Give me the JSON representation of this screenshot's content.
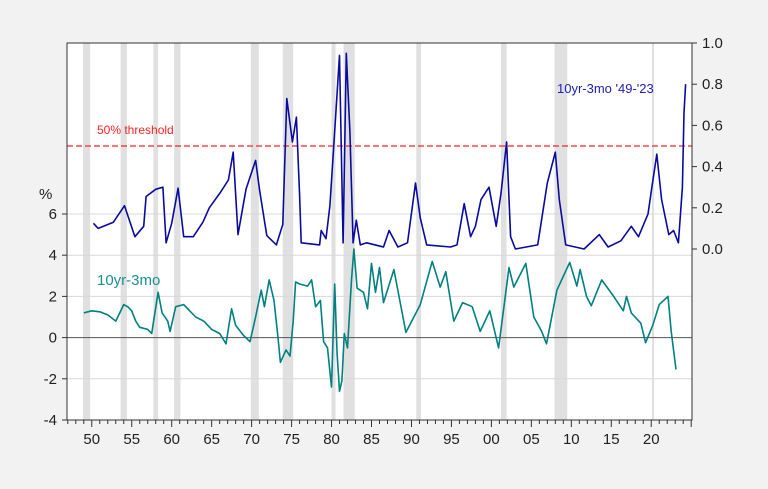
{
  "chart_data": {
    "type": "line",
    "title": "",
    "left_axis": {
      "unit_label": "%",
      "range": [
        -4,
        14.3
      ],
      "ticks": [
        6,
        4,
        2,
        0,
        -2,
        -4
      ],
      "tick_labels": [
        "6",
        "4",
        "2",
        "0",
        "-2",
        "-4"
      ],
      "gridlines": [
        6,
        4,
        2,
        -2
      ]
    },
    "right_axis": {
      "range": [
        -0.83,
        1.0
      ],
      "ticks": [
        0.0,
        0.2,
        0.4,
        0.6,
        0.8,
        1.0
      ],
      "tick_labels": [
        "0.0",
        "0.2",
        "0.4",
        "0.6",
        "0.8",
        "1.0"
      ]
    },
    "x_axis": {
      "range": [
        1946.9,
        2025.1
      ],
      "ticks": [
        1950,
        1955,
        1960,
        1965,
        1970,
        1975,
        1980,
        1985,
        1990,
        1995,
        2000,
        2005,
        2010,
        2015,
        2020
      ],
      "tick_labels": [
        "50",
        "55",
        "60",
        "65",
        "70",
        "75",
        "80",
        "85",
        "90",
        "95",
        "00",
        "05",
        "10",
        "15",
        "20"
      ]
    },
    "threshold": {
      "value": 0.5,
      "label": "50% threshold",
      "color": "#ff2020"
    },
    "recessions": [
      [
        1948.9,
        1949.8
      ],
      [
        1953.6,
        1954.4
      ],
      [
        1957.7,
        1958.3
      ],
      [
        1960.3,
        1961.1
      ],
      [
        1969.9,
        1970.9
      ],
      [
        1973.9,
        1975.2
      ],
      [
        1980.0,
        1980.5
      ],
      [
        1981.5,
        1982.9
      ],
      [
        1990.6,
        1991.2
      ],
      [
        2001.2,
        2001.9
      ],
      [
        2007.9,
        2009.5
      ],
      [
        2020.1,
        2020.3
      ]
    ],
    "series": [
      {
        "name": "10yr-3mo '49-'23",
        "axis": "right",
        "color": "#0a0aa0",
        "x": [
          1950.2,
          1950.8,
          1952.7,
          1954.1,
          1955.4,
          1956.5,
          1956.8,
          1958.0,
          1958.9,
          1959.3,
          1960.0,
          1960.8,
          1961.5,
          1962.7,
          1963.9,
          1964.7,
          1966.0,
          1967.1,
          1967.7,
          1968.3,
          1969.3,
          1970.5,
          1971.0,
          1971.9,
          1973.1,
          1973.9,
          1974.4,
          1975.1,
          1975.6,
          1976.0,
          1976.2,
          1978.5,
          1978.7,
          1979.3,
          1979.8,
          1980.2,
          1981.0,
          1981.45,
          1981.85,
          1982.3,
          1982.7,
          1983.1,
          1983.6,
          1984.4,
          1986.5,
          1987.2,
          1988.3,
          1989.5,
          1990.5,
          1991.1,
          1991.9,
          1994.9,
          1995.7,
          1996.6,
          1997.4,
          1998.0,
          1998.7,
          1999.7,
          2000.6,
          2001.2,
          2001.9,
          2002.4,
          2003.0,
          2005.8,
          2007.0,
          2008.0,
          2008.5,
          2009.3,
          2011.6,
          2013.5,
          2014.6,
          2016.2,
          2017.5,
          2018.4,
          2019.6,
          2020.2,
          2020.7,
          2021.3,
          2022.2,
          2022.8,
          2023.4,
          2023.9,
          2024.1,
          2024.3
        ],
        "values": [
          0.125,
          0.1,
          0.13,
          0.21,
          0.06,
          0.11,
          0.255,
          0.29,
          0.3,
          0.03,
          0.125,
          0.295,
          0.06,
          0.06,
          0.13,
          0.2,
          0.27,
          0.335,
          0.47,
          0.07,
          0.29,
          0.43,
          0.285,
          0.065,
          0.02,
          0.12,
          0.73,
          0.52,
          0.64,
          0.26,
          0.03,
          0.02,
          0.09,
          0.05,
          0.21,
          0.45,
          0.94,
          0.03,
          0.95,
          0.57,
          0.03,
          0.14,
          0.02,
          0.03,
          0.01,
          0.09,
          0.01,
          0.03,
          0.32,
          0.15,
          0.02,
          0.01,
          0.02,
          0.22,
          0.06,
          0.11,
          0.24,
          0.3,
          0.11,
          0.27,
          0.52,
          0.06,
          0.0,
          0.02,
          0.32,
          0.47,
          0.24,
          0.02,
          0.0,
          0.07,
          0.01,
          0.04,
          0.11,
          0.06,
          0.17,
          0.33,
          0.46,
          0.24,
          0.07,
          0.09,
          0.03,
          0.3,
          0.66,
          0.8
        ]
      },
      {
        "name": "10yr-3mo",
        "axis": "left",
        "color": "#008080",
        "x": [
          1949.0,
          1950.0,
          1951.0,
          1952.0,
          1953.0,
          1954.0,
          1954.5,
          1955.0,
          1955.5,
          1956.0,
          1957.0,
          1957.5,
          1958.3,
          1958.8,
          1959.5,
          1959.8,
          1960.5,
          1961.5,
          1962.0,
          1963.0,
          1964.0,
          1965.0,
          1966.0,
          1966.8,
          1967.5,
          1968.0,
          1969.0,
          1969.8,
          1970.5,
          1971.2,
          1971.6,
          1972.2,
          1972.8,
          1973.3,
          1973.6,
          1974.3,
          1974.8,
          1975.2,
          1975.5,
          1976.0,
          1977.0,
          1977.5,
          1978.0,
          1978.6,
          1979.0,
          1979.5,
          1980.0,
          1980.4,
          1980.7,
          1981.0,
          1981.3,
          1981.6,
          1982.0,
          1982.5,
          1982.8,
          1983.2,
          1984.0,
          1984.5,
          1985.0,
          1985.5,
          1986.0,
          1986.5,
          1987.8,
          1989.3,
          1991.1,
          1992.6,
          1993.6,
          1994.3,
          1995.3,
          1996.4,
          1997.6,
          1998.6,
          1999.8,
          2000.9,
          2002.2,
          2002.8,
          2004.3,
          2005.3,
          2006.3,
          2006.9,
          2008.2,
          2009.8,
          2010.7,
          2011.1,
          2011.9,
          2012.5,
          2013.8,
          2015.3,
          2016.5,
          2016.9,
          2017.5,
          2018.7,
          2019.3,
          2020.2,
          2021.0,
          2022.1,
          2022.5,
          2023.1
        ],
        "values": [
          1.2,
          1.3,
          1.25,
          1.1,
          0.8,
          1.6,
          1.5,
          1.3,
          0.8,
          0.5,
          0.4,
          0.2,
          2.2,
          1.2,
          0.8,
          0.3,
          1.5,
          1.6,
          1.4,
          1.0,
          0.8,
          0.4,
          0.2,
          -0.3,
          1.4,
          0.6,
          0.1,
          -0.2,
          1.0,
          2.3,
          1.5,
          2.8,
          1.8,
          0.0,
          -1.2,
          -0.6,
          -0.9,
          0.8,
          2.7,
          2.6,
          2.5,
          2.8,
          1.5,
          1.8,
          -0.2,
          -0.5,
          -2.4,
          2.6,
          -0.8,
          -2.6,
          -2.1,
          0.2,
          -0.5,
          2.8,
          4.3,
          2.4,
          2.2,
          1.4,
          3.6,
          2.2,
          3.4,
          1.7,
          3.3,
          0.25,
          1.6,
          3.7,
          2.45,
          3.2,
          0.8,
          1.7,
          1.5,
          0.3,
          1.3,
          -0.5,
          3.4,
          2.45,
          3.6,
          1.0,
          0.3,
          -0.3,
          2.3,
          3.65,
          2.5,
          3.3,
          2.0,
          1.55,
          2.8,
          2.0,
          1.3,
          2.0,
          1.2,
          0.7,
          -0.25,
          0.6,
          1.6,
          2.0,
          0.3,
          -1.55
        ]
      }
    ],
    "colors": {
      "recession": "#e0e0e0",
      "grid": "#d8d8d8",
      "zero_line": "#555555",
      "background": "#f2f2f2",
      "plot_background": "#ffffff"
    }
  }
}
